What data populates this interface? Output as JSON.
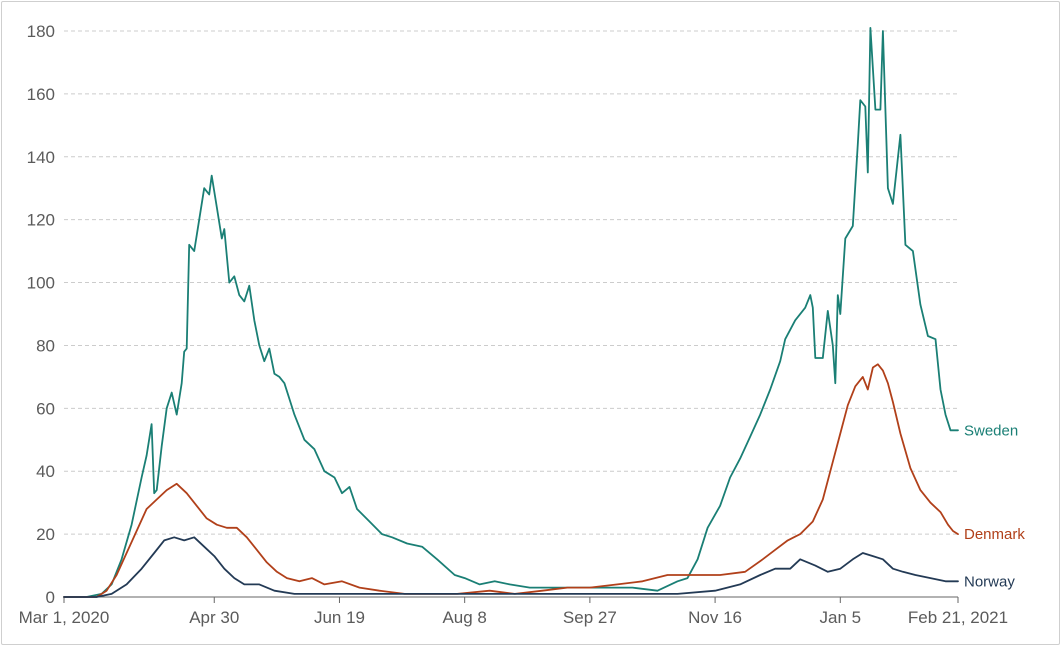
{
  "chart_data": {
    "type": "line",
    "title": "",
    "xlabel": "",
    "ylabel": "",
    "ylim": [
      0,
      180
    ],
    "yticks": [
      0,
      20,
      40,
      60,
      80,
      100,
      120,
      140,
      160,
      180
    ],
    "xlim": [
      "2020-03-01",
      "2021-02-21"
    ],
    "xticks": [
      {
        "date": "2020-03-01",
        "label": "Mar 1, 2020"
      },
      {
        "date": "2020-04-30",
        "label": "Apr 30"
      },
      {
        "date": "2020-06-19",
        "label": "Jun 19"
      },
      {
        "date": "2020-08-08",
        "label": "Aug 8"
      },
      {
        "date": "2020-09-27",
        "label": "Sep 27"
      },
      {
        "date": "2020-11-16",
        "label": "Nov 16"
      },
      {
        "date": "2021-01-05",
        "label": "Jan 5"
      },
      {
        "date": "2021-02-21",
        "label": "Feb 21, 2021"
      }
    ],
    "grid": "horizontal dashed",
    "legend": "inline labels at line ends",
    "series": [
      {
        "name": "Sweden",
        "color": "#1a7f75",
        "points": [
          [
            "2020-03-01",
            0
          ],
          [
            "2020-03-10",
            0
          ],
          [
            "2020-03-16",
            1
          ],
          [
            "2020-03-20",
            4
          ],
          [
            "2020-03-24",
            12
          ],
          [
            "2020-03-28",
            23
          ],
          [
            "2020-04-01",
            38
          ],
          [
            "2020-04-03",
            45
          ],
          [
            "2020-04-05",
            55
          ],
          [
            "2020-04-06",
            33
          ],
          [
            "2020-04-07",
            34
          ],
          [
            "2020-04-09",
            48
          ],
          [
            "2020-04-11",
            60
          ],
          [
            "2020-04-13",
            65
          ],
          [
            "2020-04-15",
            58
          ],
          [
            "2020-04-17",
            68
          ],
          [
            "2020-04-18",
            78
          ],
          [
            "2020-04-19",
            79
          ],
          [
            "2020-04-20",
            112
          ],
          [
            "2020-04-22",
            110
          ],
          [
            "2020-04-24",
            120
          ],
          [
            "2020-04-26",
            130
          ],
          [
            "2020-04-28",
            128
          ],
          [
            "2020-04-29",
            134
          ],
          [
            "2020-05-01",
            124
          ],
          [
            "2020-05-03",
            114
          ],
          [
            "2020-05-04",
            117
          ],
          [
            "2020-05-06",
            100
          ],
          [
            "2020-05-08",
            102
          ],
          [
            "2020-05-10",
            96
          ],
          [
            "2020-05-12",
            94
          ],
          [
            "2020-05-14",
            99
          ],
          [
            "2020-05-16",
            88
          ],
          [
            "2020-05-18",
            80
          ],
          [
            "2020-05-20",
            75
          ],
          [
            "2020-05-22",
            79
          ],
          [
            "2020-05-24",
            71
          ],
          [
            "2020-05-26",
            70
          ],
          [
            "2020-05-28",
            68
          ],
          [
            "2020-05-30",
            63
          ],
          [
            "2020-06-01",
            58
          ],
          [
            "2020-06-05",
            50
          ],
          [
            "2020-06-09",
            47
          ],
          [
            "2020-06-13",
            40
          ],
          [
            "2020-06-17",
            38
          ],
          [
            "2020-06-20",
            33
          ],
          [
            "2020-06-23",
            35
          ],
          [
            "2020-06-26",
            28
          ],
          [
            "2020-07-01",
            24
          ],
          [
            "2020-07-06",
            20
          ],
          [
            "2020-07-10",
            19
          ],
          [
            "2020-07-16",
            17
          ],
          [
            "2020-07-22",
            16
          ],
          [
            "2020-07-28",
            12
          ],
          [
            "2020-08-04",
            7
          ],
          [
            "2020-08-08",
            6
          ],
          [
            "2020-08-14",
            4
          ],
          [
            "2020-08-20",
            5
          ],
          [
            "2020-08-26",
            4
          ],
          [
            "2020-09-03",
            3
          ],
          [
            "2020-09-12",
            3
          ],
          [
            "2020-09-20",
            3
          ],
          [
            "2020-09-27",
            3
          ],
          [
            "2020-10-05",
            3
          ],
          [
            "2020-10-14",
            3
          ],
          [
            "2020-10-24",
            2
          ],
          [
            "2020-11-01",
            5
          ],
          [
            "2020-11-05",
            6
          ],
          [
            "2020-11-09",
            12
          ],
          [
            "2020-11-13",
            22
          ],
          [
            "2020-11-18",
            29
          ],
          [
            "2020-11-22",
            38
          ],
          [
            "2020-11-26",
            44
          ],
          [
            "2020-11-30",
            51
          ],
          [
            "2020-12-04",
            58
          ],
          [
            "2020-12-08",
            66
          ],
          [
            "2020-12-12",
            75
          ],
          [
            "2020-12-14",
            82
          ],
          [
            "2020-12-18",
            88
          ],
          [
            "2020-12-22",
            92
          ],
          [
            "2020-12-24",
            96
          ],
          [
            "2020-12-25",
            92
          ],
          [
            "2020-12-26",
            76
          ],
          [
            "2020-12-29",
            76
          ],
          [
            "2020-12-31",
            91
          ],
          [
            "2021-01-02",
            80
          ],
          [
            "2021-01-03",
            68
          ],
          [
            "2021-01-04",
            96
          ],
          [
            "2021-01-05",
            90
          ],
          [
            "2021-01-07",
            114
          ],
          [
            "2021-01-10",
            118
          ],
          [
            "2021-01-12",
            144
          ],
          [
            "2021-01-13",
            158
          ],
          [
            "2021-01-15",
            156
          ],
          [
            "2021-01-16",
            135
          ],
          [
            "2021-01-17",
            181
          ],
          [
            "2021-01-19",
            155
          ],
          [
            "2021-01-21",
            155
          ],
          [
            "2021-01-22",
            180
          ],
          [
            "2021-01-24",
            130
          ],
          [
            "2021-01-26",
            125
          ],
          [
            "2021-01-29",
            147
          ],
          [
            "2021-01-31",
            112
          ],
          [
            "2021-02-03",
            110
          ],
          [
            "2021-02-06",
            93
          ],
          [
            "2021-02-09",
            83
          ],
          [
            "2021-02-12",
            82
          ],
          [
            "2021-02-14",
            66
          ],
          [
            "2021-02-16",
            58
          ],
          [
            "2021-02-18",
            53
          ],
          [
            "2021-02-21",
            53
          ]
        ]
      },
      {
        "name": "Denmark",
        "color": "#b1401a",
        "points": [
          [
            "2020-03-01",
            0
          ],
          [
            "2020-03-14",
            0
          ],
          [
            "2020-03-18",
            2
          ],
          [
            "2020-03-22",
            7
          ],
          [
            "2020-03-26",
            14
          ],
          [
            "2020-03-30",
            21
          ],
          [
            "2020-04-03",
            28
          ],
          [
            "2020-04-07",
            31
          ],
          [
            "2020-04-11",
            34
          ],
          [
            "2020-04-15",
            36
          ],
          [
            "2020-04-19",
            33
          ],
          [
            "2020-04-23",
            29
          ],
          [
            "2020-04-27",
            25
          ],
          [
            "2020-05-01",
            23
          ],
          [
            "2020-05-05",
            22
          ],
          [
            "2020-05-09",
            22
          ],
          [
            "2020-05-13",
            19
          ],
          [
            "2020-05-17",
            15
          ],
          [
            "2020-05-21",
            11
          ],
          [
            "2020-05-25",
            8
          ],
          [
            "2020-05-29",
            6
          ],
          [
            "2020-06-03",
            5
          ],
          [
            "2020-06-08",
            6
          ],
          [
            "2020-06-13",
            4
          ],
          [
            "2020-06-20",
            5
          ],
          [
            "2020-06-27",
            3
          ],
          [
            "2020-07-05",
            2
          ],
          [
            "2020-07-15",
            1
          ],
          [
            "2020-07-25",
            1
          ],
          [
            "2020-08-05",
            1
          ],
          [
            "2020-08-18",
            2
          ],
          [
            "2020-08-28",
            1
          ],
          [
            "2020-09-08",
            2
          ],
          [
            "2020-09-18",
            3
          ],
          [
            "2020-09-27",
            3
          ],
          [
            "2020-10-08",
            4
          ],
          [
            "2020-10-18",
            5
          ],
          [
            "2020-10-28",
            7
          ],
          [
            "2020-11-08",
            7
          ],
          [
            "2020-11-18",
            7
          ],
          [
            "2020-11-28",
            8
          ],
          [
            "2020-12-05",
            12
          ],
          [
            "2020-12-10",
            15
          ],
          [
            "2020-12-15",
            18
          ],
          [
            "2020-12-20",
            20
          ],
          [
            "2020-12-25",
            24
          ],
          [
            "2020-12-29",
            31
          ],
          [
            "2021-01-02",
            43
          ],
          [
            "2021-01-05",
            52
          ],
          [
            "2021-01-08",
            61
          ],
          [
            "2021-01-11",
            67
          ],
          [
            "2021-01-14",
            70
          ],
          [
            "2021-01-16",
            66
          ],
          [
            "2021-01-18",
            73
          ],
          [
            "2021-01-20",
            74
          ],
          [
            "2021-01-22",
            72
          ],
          [
            "2021-01-24",
            68
          ],
          [
            "2021-01-26",
            62
          ],
          [
            "2021-01-29",
            52
          ],
          [
            "2021-02-02",
            41
          ],
          [
            "2021-02-06",
            34
          ],
          [
            "2021-02-10",
            30
          ],
          [
            "2021-02-14",
            27
          ],
          [
            "2021-02-17",
            23
          ],
          [
            "2021-02-19",
            21
          ],
          [
            "2021-02-21",
            20
          ]
        ]
      },
      {
        "name": "Norway",
        "color": "#233a55",
        "points": [
          [
            "2020-03-01",
            0
          ],
          [
            "2020-03-14",
            0
          ],
          [
            "2020-03-20",
            1
          ],
          [
            "2020-03-26",
            4
          ],
          [
            "2020-04-01",
            9
          ],
          [
            "2020-04-06",
            14
          ],
          [
            "2020-04-10",
            18
          ],
          [
            "2020-04-14",
            19
          ],
          [
            "2020-04-18",
            18
          ],
          [
            "2020-04-22",
            19
          ],
          [
            "2020-04-26",
            16
          ],
          [
            "2020-04-30",
            13
          ],
          [
            "2020-05-04",
            9
          ],
          [
            "2020-05-08",
            6
          ],
          [
            "2020-05-12",
            4
          ],
          [
            "2020-05-18",
            4
          ],
          [
            "2020-05-24",
            2
          ],
          [
            "2020-06-01",
            1
          ],
          [
            "2020-06-15",
            1
          ],
          [
            "2020-07-01",
            1
          ],
          [
            "2020-08-01",
            1
          ],
          [
            "2020-09-01",
            1
          ],
          [
            "2020-09-27",
            1
          ],
          [
            "2020-10-15",
            1
          ],
          [
            "2020-11-01",
            1
          ],
          [
            "2020-11-16",
            2
          ],
          [
            "2020-11-26",
            4
          ],
          [
            "2020-12-04",
            7
          ],
          [
            "2020-12-10",
            9
          ],
          [
            "2020-12-16",
            9
          ],
          [
            "2020-12-20",
            12
          ],
          [
            "2020-12-26",
            10
          ],
          [
            "2020-12-31",
            8
          ],
          [
            "2021-01-05",
            9
          ],
          [
            "2021-01-10",
            12
          ],
          [
            "2021-01-14",
            14
          ],
          [
            "2021-01-18",
            13
          ],
          [
            "2021-01-22",
            12
          ],
          [
            "2021-01-26",
            9
          ],
          [
            "2021-01-30",
            8
          ],
          [
            "2021-02-04",
            7
          ],
          [
            "2021-02-10",
            6
          ],
          [
            "2021-02-16",
            5
          ],
          [
            "2021-02-21",
            5
          ]
        ]
      }
    ]
  }
}
